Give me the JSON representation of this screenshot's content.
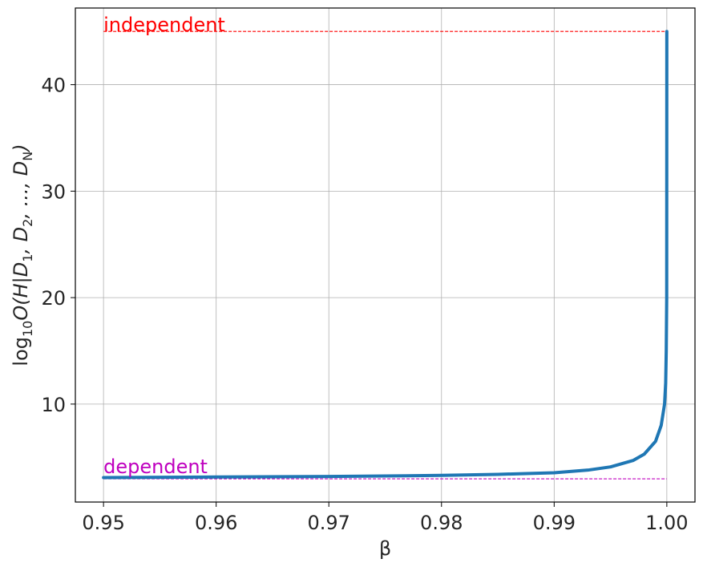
{
  "chart_data": {
    "type": "line",
    "title": "",
    "xlabel": "β",
    "ylabel_parts": {
      "base": "log",
      "base_sub": "10",
      "body": "O(H|D",
      "s1": "1",
      "mid1": ", D",
      "s2": "2",
      "mid2": ", ..., D",
      "sN": "N",
      "end": ")"
    },
    "xlim": [
      0.9475,
      1.0025
    ],
    "ylim": [
      0.8,
      47.2
    ],
    "x_ticks": [
      0.95,
      0.96,
      0.97,
      0.98,
      0.99,
      1.0
    ],
    "x_tick_labels": [
      "0.95",
      "0.96",
      "0.97",
      "0.98",
      "0.99",
      "1.00"
    ],
    "y_ticks": [
      10,
      20,
      30,
      40
    ],
    "y_tick_labels": [
      "10",
      "20",
      "30",
      "40"
    ],
    "grid": true,
    "series": [
      {
        "color": "#1f77b4",
        "x": [
          0.95,
          0.96,
          0.97,
          0.98,
          0.985,
          0.99,
          0.993,
          0.995,
          0.997,
          0.998,
          0.999,
          0.9995,
          0.9998,
          0.9999,
          0.99995,
          0.99999,
          1.0
        ],
        "y": [
          3.1,
          3.15,
          3.2,
          3.3,
          3.4,
          3.55,
          3.8,
          4.1,
          4.7,
          5.3,
          6.5,
          8.0,
          10.0,
          12.0,
          15.0,
          20.0,
          45.0
        ]
      }
    ],
    "reference_lines": [
      {
        "x_range": [
          0.95,
          1.0
        ],
        "y": 45.0,
        "color": "#ff0000",
        "style": "dashed"
      },
      {
        "x_range": [
          0.95,
          1.0
        ],
        "y": 2.98,
        "color": "#bf00bf",
        "style": "dashed"
      }
    ],
    "annotations": [
      {
        "text": "independent",
        "x": 0.95,
        "y": 45.0,
        "color": "#ff0000"
      },
      {
        "text": "dependent",
        "x": 0.95,
        "y": 3.5,
        "color": "#bf00bf"
      }
    ]
  }
}
